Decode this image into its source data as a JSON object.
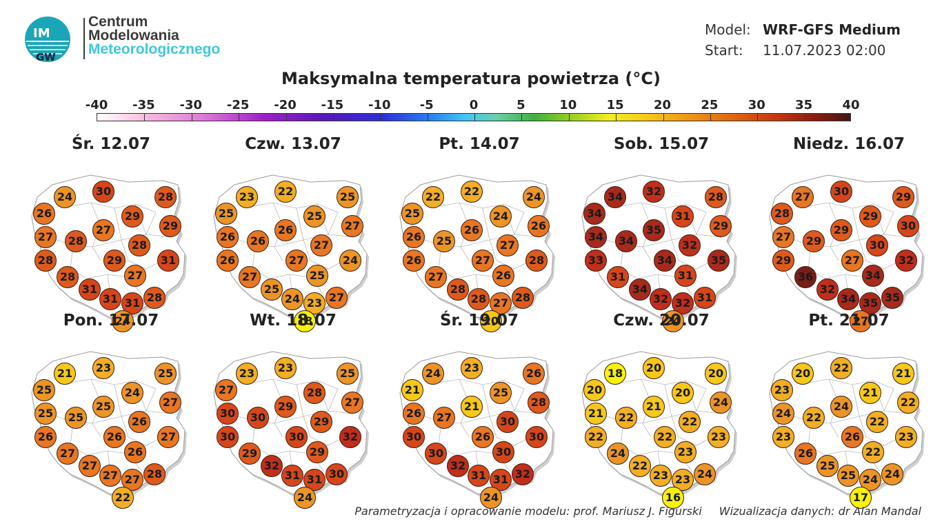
{
  "header": {
    "org_line1": "Centrum",
    "org_line2": "Modelowania",
    "org_line3": "Meteorologicznego",
    "logo_text_top": "IM",
    "logo_text_bottom": "GW",
    "model_key": "Model:",
    "model_value": "WRF-GFS Medium",
    "start_key": "Start:",
    "start_value": "11.07.2023 02:00"
  },
  "title": "Maksymalna temperatura powietrza (°C)",
  "scale": {
    "labels": [
      "-40",
      "-35",
      "-30",
      "-25",
      "-20",
      "-15",
      "-10",
      "-5",
      "0",
      "5",
      "10",
      "15",
      "20",
      "25",
      "30",
      "35",
      "40"
    ]
  },
  "colors": {
    "t16_18": "#f8f20a",
    "t20_21": "#f6c81a",
    "t22_23": "#f2ae24",
    "t24_25": "#ec9526",
    "t26_27": "#e87622",
    "t28_29": "#de5a1c",
    "t30_31": "#d6461a",
    "t32_33": "#c02e1c",
    "t34_35": "#a82a1c",
    "t36": "#7a1e18"
  },
  "maps": [
    {
      "day": "Śr. 12.07",
      "values": [
        24,
        30,
        28,
        26,
        29,
        29,
        27,
        27,
        28,
        28,
        29,
        28,
        31,
        27,
        28,
        31,
        31,
        31,
        28,
        24
      ]
    },
    {
      "day": "Czw. 13.07",
      "values": [
        23,
        22,
        25,
        25,
        25,
        27,
        26,
        26,
        26,
        27,
        27,
        26,
        24,
        25,
        27,
        25,
        24,
        23,
        27,
        18
      ]
    },
    {
      "day": "Pt. 14.07",
      "values": [
        22,
        22,
        24,
        25,
        24,
        26,
        26,
        26,
        25,
        27,
        27,
        26,
        28,
        26,
        27,
        28,
        28,
        27,
        28,
        20
      ]
    },
    {
      "day": "Sob. 15.07",
      "values": [
        34,
        32,
        28,
        34,
        31,
        29,
        35,
        34,
        34,
        32,
        34,
        33,
        35,
        31,
        31,
        34,
        32,
        32,
        31,
        24
      ]
    },
    {
      "day": "Niedz. 16.07",
      "values": [
        27,
        30,
        29,
        28,
        29,
        30,
        29,
        27,
        29,
        30,
        27,
        29,
        32,
        34,
        36,
        32,
        34,
        35,
        35,
        27
      ]
    },
    {
      "day": "Pon. 17.07",
      "values": [
        21,
        23,
        25,
        25,
        24,
        27,
        25,
        25,
        25,
        26,
        26,
        26,
        27,
        26,
        27,
        27,
        27,
        27,
        28,
        22
      ]
    },
    {
      "day": "Wt. 18.07",
      "values": [
        23,
        23,
        25,
        27,
        28,
        27,
        29,
        30,
        30,
        29,
        30,
        30,
        32,
        29,
        29,
        32,
        31,
        31,
        30,
        24
      ]
    },
    {
      "day": "Śr. 19.07",
      "values": [
        24,
        23,
        26,
        21,
        25,
        28,
        21,
        26,
        27,
        30,
        26,
        30,
        30,
        30,
        30,
        32,
        31,
        31,
        32,
        24
      ]
    },
    {
      "day": "Czw. 20.07",
      "values": [
        18,
        20,
        20,
        20,
        20,
        24,
        21,
        21,
        22,
        22,
        22,
        22,
        23,
        23,
        24,
        22,
        23,
        23,
        24,
        16
      ]
    },
    {
      "day": "Pt. 21.07",
      "values": [
        20,
        22,
        21,
        23,
        21,
        22,
        24,
        24,
        22,
        22,
        26,
        23,
        23,
        22,
        26,
        25,
        25,
        24,
        24,
        17
      ]
    }
  ],
  "credits": {
    "left": "Parametryzacja i opracowanie modelu: prof. Mariusz J. Figurski",
    "right": "Wizualizacja danych: dr Alan Mandal"
  }
}
